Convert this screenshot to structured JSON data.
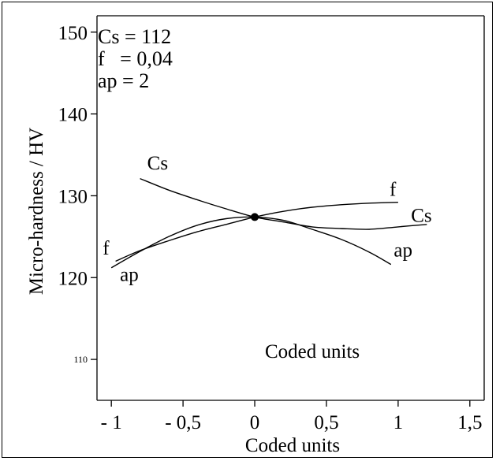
{
  "chart_data": {
    "type": "line",
    "xlabel": "Coded units",
    "ylabel": "Micro-hardness / HV",
    "xlim": [
      -1.1,
      1.6
    ],
    "ylim": [
      105,
      152
    ],
    "x_ticks": [
      -1,
      -0.5,
      0,
      0.5,
      1,
      1.5
    ],
    "x_tick_labels": [
      "- 1",
      "- 0,5",
      "0",
      "0,5",
      "1",
      "1,5"
    ],
    "y_ticks": [
      110,
      120,
      130,
      140,
      150
    ],
    "y_tick_labels": [
      "110",
      "120",
      "130",
      "140",
      "150"
    ],
    "annotations": [
      "Cs = 112",
      "f   = 0,04",
      "ap = 2"
    ],
    "inner_label": "Coded units",
    "center_point": {
      "x": 0,
      "y": 127.4
    },
    "series": [
      {
        "name": "Cs",
        "x": [
          -0.8,
          -0.6,
          -0.4,
          -0.2,
          0,
          0.2,
          0.4,
          0.6,
          0.8,
          1.0,
          1.2
        ],
        "y": [
          132.1,
          130.7,
          129.5,
          128.4,
          127.4,
          126.8,
          126.2,
          126.0,
          125.9,
          126.2,
          126.5
        ]
      },
      {
        "name": "f",
        "x": [
          -0.97,
          -0.8,
          -0.6,
          -0.4,
          -0.2,
          0,
          0.2,
          0.4,
          0.6,
          0.8,
          1.0
        ],
        "y": [
          122.0,
          123.3,
          124.5,
          125.6,
          126.5,
          127.4,
          128.1,
          128.6,
          128.9,
          129.1,
          129.2
        ]
      },
      {
        "name": "ap",
        "x": [
          -1.0,
          -0.8,
          -0.6,
          -0.4,
          -0.2,
          0,
          0.2,
          0.4,
          0.6,
          0.8,
          0.95
        ],
        "y": [
          121.2,
          123.2,
          125.0,
          126.4,
          127.2,
          127.4,
          127.0,
          125.9,
          124.7,
          123.1,
          121.6
        ]
      }
    ],
    "series_labels": [
      {
        "text": "Cs",
        "x": -0.75,
        "y": 133.2
      },
      {
        "text": "Cs",
        "x": 1.09,
        "y": 126.8
      },
      {
        "text": "f",
        "x": 0.94,
        "y": 130.0
      },
      {
        "text": "f",
        "x": -1.06,
        "y": 122.8
      },
      {
        "text": "ap",
        "x": -0.94,
        "y": 119.6
      },
      {
        "text": "ap",
        "x": 0.97,
        "y": 122.6
      }
    ]
  }
}
